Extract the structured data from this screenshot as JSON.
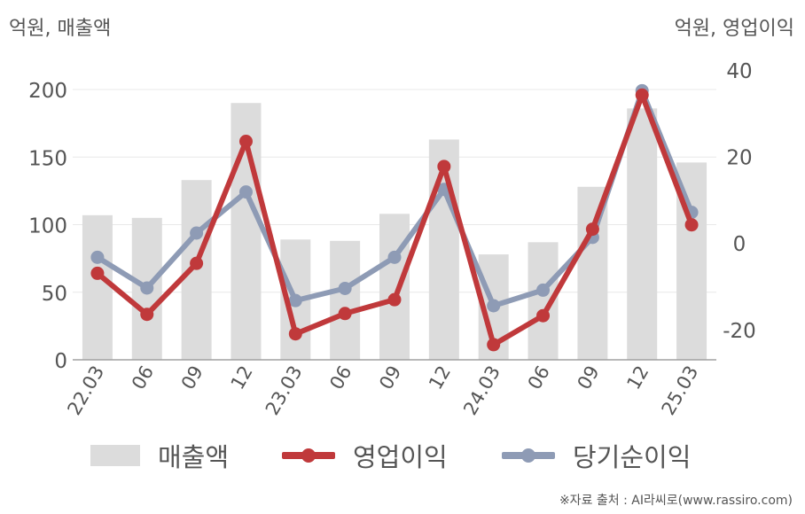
{
  "chart_data": {
    "type": "bar+line",
    "left_axis_label": "억원, 매출액",
    "right_axis_label": "억원, 영업이익",
    "categories": [
      "22.03",
      "06",
      "09",
      "12",
      "23.03",
      "06",
      "09",
      "12",
      "24.03",
      "06",
      "09",
      "12",
      "25.03"
    ],
    "left_ylim": [
      0,
      200
    ],
    "left_ticks": [
      0,
      50,
      100,
      150,
      200
    ],
    "right_ylim": [
      -27,
      40
    ],
    "right_ticks": [
      -20,
      0,
      20,
      40
    ],
    "series": [
      {
        "name": "매출액",
        "type": "bar",
        "axis": "left",
        "color": "#dcdcdc",
        "values": [
          107,
          105,
          133,
          190,
          89,
          88,
          108,
          163,
          78,
          87,
          128,
          186,
          146
        ]
      },
      {
        "name": "영업이익",
        "type": "line",
        "axis": "right",
        "color": "#c0393b",
        "values": [
          -7,
          -16.5,
          -4.7,
          23.5,
          -21,
          -16.3,
          -13.1,
          17.7,
          -23.5,
          -16.8,
          3.2,
          34.2,
          4.2
        ]
      },
      {
        "name": "당기순이익",
        "type": "line",
        "axis": "right",
        "color": "#8e9bb5",
        "values": [
          -3.3,
          -10.4,
          2.3,
          11.8,
          -13.3,
          -10.5,
          -3.3,
          12.4,
          -14.5,
          -10.9,
          1.3,
          35.2,
          7.1
        ]
      }
    ],
    "grid": true
  },
  "legend": {
    "bar_label": "매출액",
    "op_label": "영업이익",
    "net_label": "당기순이익"
  },
  "source": "※자료 출처 : AI라씨로(www.rassiro.com)"
}
